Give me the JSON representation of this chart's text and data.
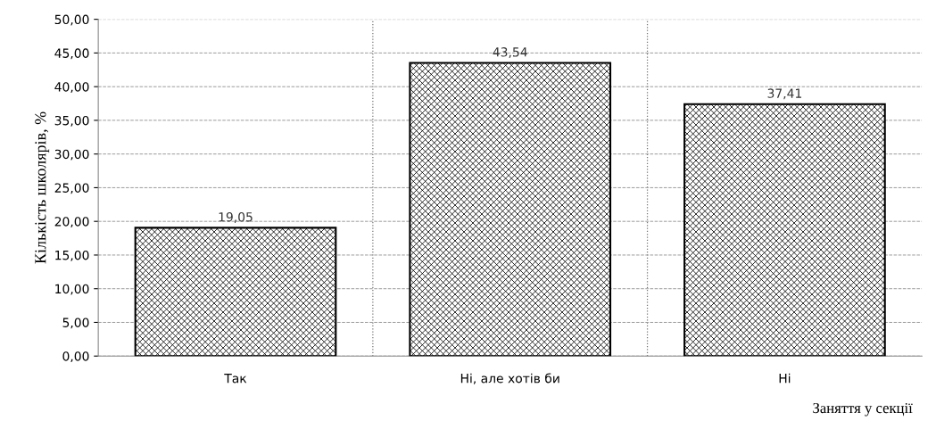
{
  "chart_data": {
    "type": "bar",
    "xlabel": "Заняття у секції",
    "ylabel": "Кількість школярів, %",
    "categories": [
      "Так",
      "Ні, але хотів би",
      "Ні"
    ],
    "values": [
      19.05,
      43.54,
      37.41
    ],
    "value_labels": [
      "19,05",
      "43,54",
      "37,41"
    ],
    "color": "#000000",
    "ylim": [
      0,
      50
    ],
    "yticks": [
      {
        "value": 0,
        "label": "0,00"
      },
      {
        "value": 5,
        "label": "5,00"
      },
      {
        "value": 10,
        "label": "10,00"
      },
      {
        "value": 15,
        "label": "15,00"
      },
      {
        "value": 20,
        "label": "20,00"
      },
      {
        "value": 25,
        "label": "25,00"
      },
      {
        "value": 30,
        "label": "30,00"
      },
      {
        "value": 35,
        "label": "35,00"
      },
      {
        "value": 40,
        "label": "40,00"
      },
      {
        "value": 45,
        "label": "45,00"
      },
      {
        "value": 50,
        "label": "50,00"
      }
    ],
    "grid": true
  }
}
